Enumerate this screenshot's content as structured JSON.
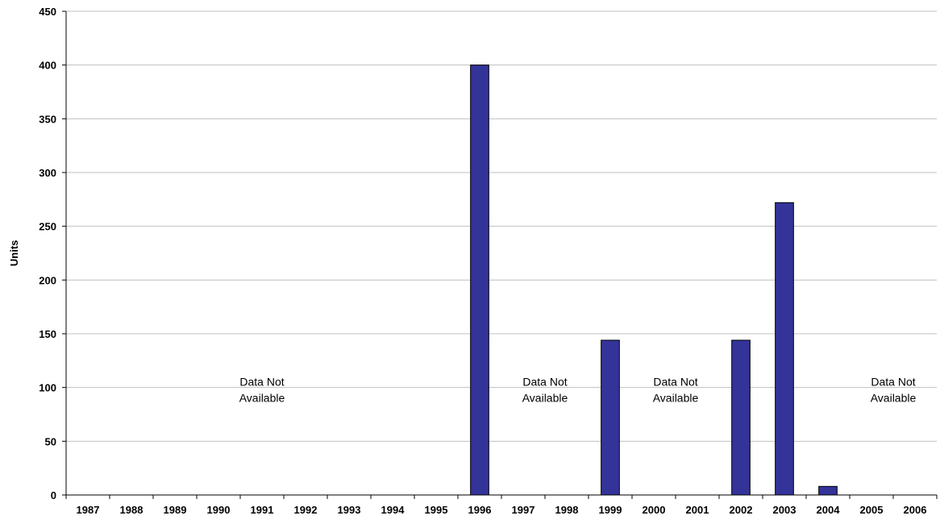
{
  "chart_data": {
    "type": "bar",
    "title": "",
    "xlabel": "",
    "ylabel": "Units",
    "ylim": [
      0,
      450
    ],
    "yticks": [
      0,
      50,
      100,
      150,
      200,
      250,
      300,
      350,
      400,
      450
    ],
    "grid": true,
    "categories": [
      "1987",
      "1988",
      "1989",
      "1990",
      "1991",
      "1992",
      "1993",
      "1994",
      "1995",
      "1996",
      "1997",
      "1998",
      "1999",
      "2000",
      "2001",
      "2002",
      "2003",
      "2004",
      "2005",
      "2006"
    ],
    "values": [
      null,
      null,
      null,
      null,
      null,
      null,
      null,
      null,
      null,
      400,
      null,
      null,
      144,
      null,
      null,
      144,
      272,
      8,
      null,
      null
    ],
    "bar_color": "#333399",
    "bar_edge_color": "#000000",
    "grid_color": "#c0c0c0",
    "annotations": [
      {
        "lines": [
          "Data Not",
          "Available"
        ],
        "span": [
          "1987",
          "1995"
        ]
      },
      {
        "lines": [
          "Data Not",
          "Available"
        ],
        "span": [
          "1997",
          "1998"
        ]
      },
      {
        "lines": [
          "Data Not",
          "Available"
        ],
        "span": [
          "2000",
          "2001"
        ]
      },
      {
        "lines": [
          "Data Not",
          "Available"
        ],
        "span": [
          "2005",
          "2006"
        ]
      }
    ]
  }
}
